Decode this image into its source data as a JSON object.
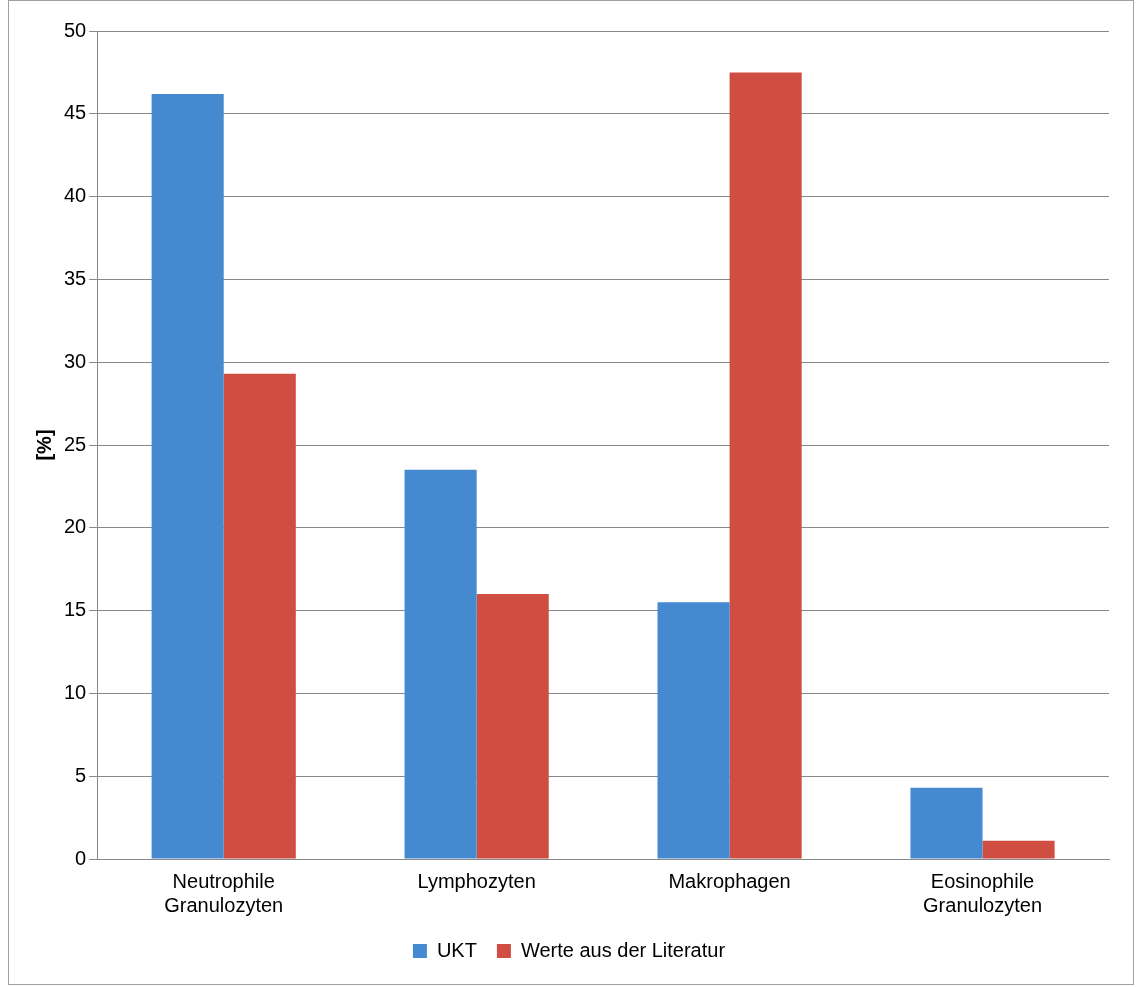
{
  "chart_data": {
    "type": "bar",
    "ylabel": "[%]",
    "categories": [
      "Neutrophile Granulozyten",
      "Lymphozyten",
      "Makrophagen",
      "Eosinophile Granulozyten"
    ],
    "series": [
      {
        "name": "UKT",
        "color": "#4589d0",
        "values": [
          46.2,
          23.5,
          15.5,
          4.3
        ]
      },
      {
        "name": "Werte aus der Literatur",
        "color": "#cf4d41",
        "values": [
          29.3,
          16.0,
          47.5,
          1.1
        ]
      }
    ],
    "ylim": [
      0,
      50
    ],
    "yticks": [
      0,
      5,
      10,
      15,
      20,
      25,
      30,
      35,
      40,
      45,
      50
    ],
    "grid": "y",
    "legend": "bottom"
  }
}
